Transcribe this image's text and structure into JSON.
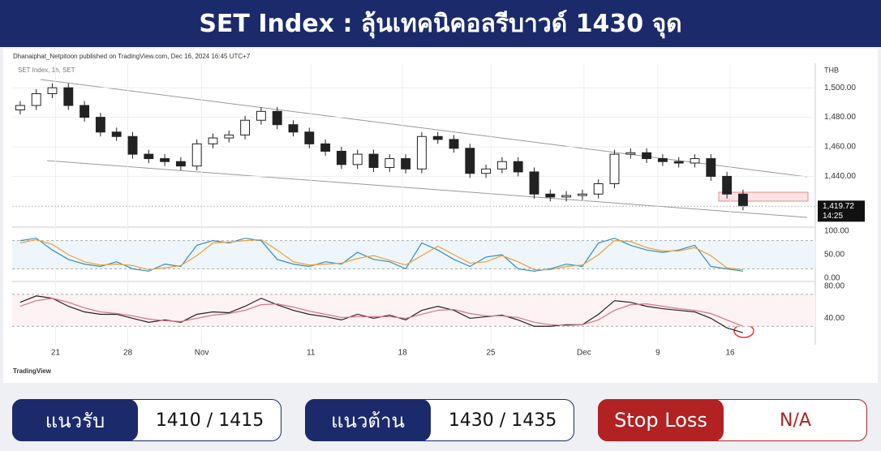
{
  "header": {
    "title": "SET Index : ลุ้นเทคนิคอลรีบาวด์ 1430 จุด"
  },
  "chart_data": [
    {
      "type": "candlestick",
      "attribution": "Dhanaiphat_Netpitoon published on TradingView.com, Dec 16, 2024 16:45 UTC+7",
      "symbol": "SET Index, 1h, SET",
      "currency": "THB",
      "brand": "TradingView",
      "open": [
        1485,
        1488,
        1496,
        1500,
        1488,
        1480,
        1470,
        1467,
        1455,
        1452,
        1450,
        1447,
        1462,
        1466,
        1468,
        1478,
        1484,
        1475,
        1470,
        1462,
        1457,
        1448,
        1455,
        1446,
        1452,
        1445,
        1467,
        1465,
        1459,
        1442,
        1445,
        1450,
        1443,
        1428,
        1426,
        1427,
        1428,
        1435,
        1455,
        1456,
        1452,
        1450,
        1449,
        1452,
        1440,
        1428
      ],
      "high": [
        1491,
        1499,
        1503,
        1503,
        1491,
        1483,
        1473,
        1470,
        1458,
        1455,
        1453,
        1465,
        1469,
        1471,
        1481,
        1487,
        1487,
        1478,
        1473,
        1465,
        1460,
        1458,
        1458,
        1455,
        1455,
        1470,
        1470,
        1468,
        1462,
        1448,
        1453,
        1453,
        1446,
        1431,
        1430,
        1431,
        1438,
        1458,
        1459,
        1459,
        1455,
        1453,
        1455,
        1455,
        1443,
        1431
      ],
      "low": [
        1482,
        1485,
        1493,
        1485,
        1477,
        1467,
        1464,
        1452,
        1449,
        1447,
        1444,
        1444,
        1459,
        1463,
        1465,
        1475,
        1472,
        1467,
        1459,
        1454,
        1445,
        1445,
        1443,
        1443,
        1442,
        1442,
        1462,
        1456,
        1439,
        1439,
        1442,
        1440,
        1425,
        1423,
        1423,
        1424,
        1425,
        1432,
        1452,
        1449,
        1447,
        1446,
        1446,
        1437,
        1425,
        1417
      ],
      "close": [
        1488,
        1496,
        1500,
        1488,
        1480,
        1470,
        1467,
        1455,
        1452,
        1450,
        1447,
        1462,
        1466,
        1468,
        1478,
        1484,
        1475,
        1470,
        1462,
        1457,
        1448,
        1455,
        1446,
        1452,
        1445,
        1467,
        1465,
        1459,
        1442,
        1445,
        1450,
        1443,
        1428,
        1426,
        1427,
        1428,
        1435,
        1455,
        1456,
        1452,
        1450,
        1449,
        1452,
        1440,
        1428,
        1420
      ],
      "xlim": [
        0,
        50
      ],
      "xticks": [
        {
          "value": 2.7,
          "label": "21"
        },
        {
          "value": 7.2,
          "label": "28"
        },
        {
          "value": 11.8,
          "label": "Nov"
        },
        {
          "value": 18.6,
          "label": "11"
        },
        {
          "value": 24.3,
          "label": "18"
        },
        {
          "value": 29.8,
          "label": "25"
        },
        {
          "value": 35.6,
          "label": "Dec"
        },
        {
          "value": 40.2,
          "label": "9"
        },
        {
          "value": 44.7,
          "label": "16"
        }
      ],
      "ylim": [
        1410,
        1510
      ],
      "yticks": [
        {
          "value": 1500,
          "label": "1,500.00"
        },
        {
          "value": 1480,
          "label": "1,480.00"
        },
        {
          "value": 1460,
          "label": "1,460.00"
        },
        {
          "value": 1440,
          "label": "1,440.00"
        }
      ],
      "last_price": {
        "value": 1419.72,
        "label": "1,419.72"
      },
      "last_time": "14:25",
      "grid": true
    },
    {
      "type": "line",
      "ylim": [
        0,
        100
      ],
      "yticks": [
        {
          "value": 100,
          "label": "100.00"
        },
        {
          "value": 50,
          "label": "50.00"
        },
        {
          "value": 0,
          "label": "0.00"
        }
      ],
      "levels": [
        20,
        80
      ],
      "series": [
        {
          "color": "#2f8fc4",
          "values": [
            80,
            85,
            60,
            40,
            30,
            25,
            35,
            20,
            15,
            30,
            25,
            70,
            80,
            75,
            85,
            80,
            40,
            30,
            25,
            35,
            30,
            55,
            40,
            35,
            20,
            75,
            60,
            40,
            25,
            45,
            50,
            20,
            15,
            20,
            30,
            25,
            75,
            85,
            70,
            60,
            55,
            60,
            70,
            25,
            20,
            15
          ]
        },
        {
          "color": "#f0a030",
          "values": [
            75,
            82,
            72,
            50,
            35,
            28,
            30,
            27,
            18,
            22,
            27,
            48,
            75,
            77,
            80,
            82,
            60,
            35,
            28,
            30,
            32,
            42,
            48,
            38,
            28,
            48,
            68,
            50,
            32,
            35,
            48,
            35,
            18,
            18,
            25,
            28,
            50,
            80,
            78,
            65,
            58,
            58,
            65,
            48,
            22,
            18
          ]
        }
      ]
    },
    {
      "type": "line",
      "ylim": [
        10,
        83
      ],
      "yticks": [
        {
          "value": 80,
          "label": "80.00"
        },
        {
          "value": 40,
          "label": "40.00"
        }
      ],
      "levels": [
        30,
        70
      ],
      "series": [
        {
          "color": "#222222",
          "values": [
            60,
            68,
            65,
            55,
            48,
            45,
            45,
            40,
            35,
            38,
            35,
            45,
            48,
            47,
            55,
            65,
            57,
            50,
            45,
            42,
            38,
            45,
            40,
            44,
            38,
            50,
            55,
            50,
            40,
            42,
            44,
            38,
            30,
            30,
            32,
            32,
            45,
            62,
            60,
            55,
            52,
            50,
            48,
            40,
            28,
            22
          ]
        },
        {
          "color": "#d9708a",
          "values": [
            55,
            62,
            65,
            60,
            53,
            48,
            46,
            43,
            39,
            37,
            36,
            40,
            44,
            46,
            50,
            57,
            58,
            54,
            49,
            45,
            41,
            42,
            42,
            42,
            40,
            45,
            50,
            51,
            46,
            43,
            43,
            41,
            35,
            32,
            31,
            32,
            38,
            50,
            57,
            58,
            55,
            52,
            50,
            46,
            38,
            30
          ]
        }
      ]
    }
  ],
  "levels": [
    {
      "label": "แนวรับ",
      "value": "1410 / 1415"
    },
    {
      "label": "แนวต้าน",
      "value": "1430 / 1435"
    },
    {
      "label": "Stop Loss",
      "value": "N/A"
    }
  ]
}
